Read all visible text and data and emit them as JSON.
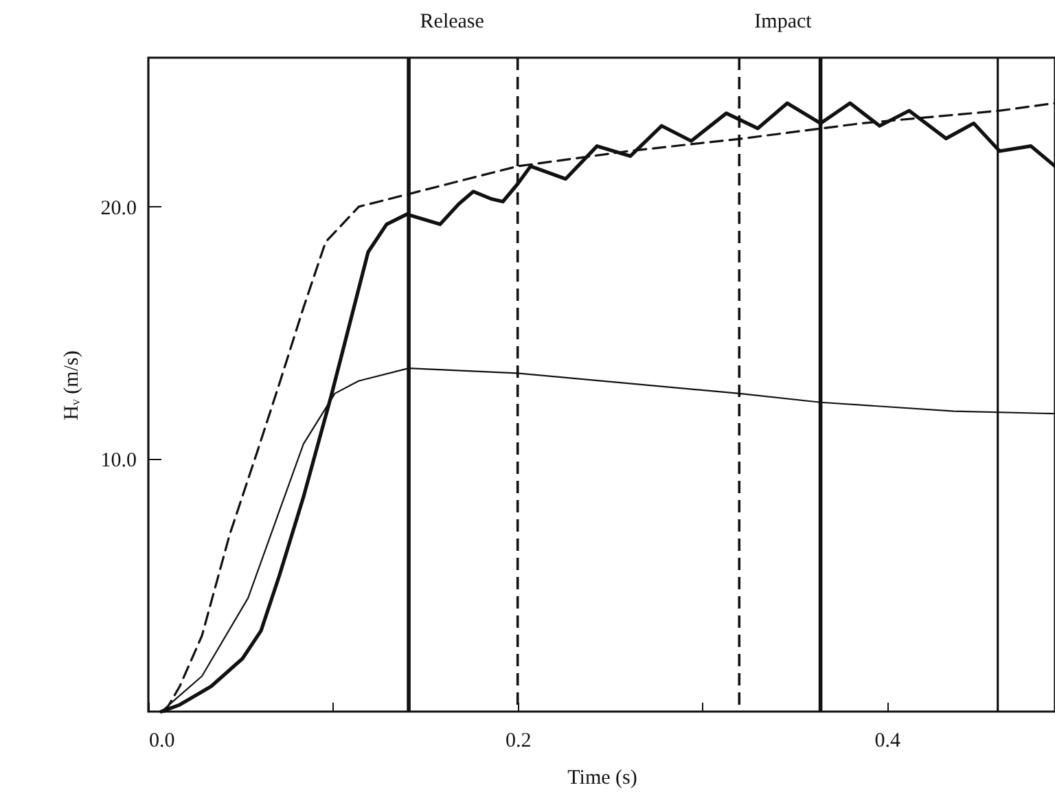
{
  "chart_data": {
    "type": "line",
    "xlabel": "Time (s)",
    "ylabel": "Hᵥ (m/s)",
    "annotations": [
      "Release",
      "Impact"
    ],
    "xlim": [
      0,
      0.491
    ],
    "ylim": [
      0,
      25.9
    ],
    "xticks": [
      {
        "value": 0,
        "label": "0.0"
      },
      {
        "value": 0.1,
        "label": null
      },
      {
        "value": 0.2,
        "label": "0.2"
      },
      {
        "value": 0.3,
        "label": null
      },
      {
        "value": 0.4,
        "label": "0.4"
      }
    ],
    "yticks": [
      {
        "value": 10,
        "label": "10.0"
      },
      {
        "value": 20,
        "label": "20.0"
      }
    ],
    "grid": false,
    "marker": "none",
    "series": [
      {
        "color": "#111111",
        "line_style": "solid",
        "x": [
          0.007,
          0.017,
          0.034,
          0.051,
          0.061,
          0.071,
          0.084,
          0.099,
          0.119,
          0.129,
          0.14,
          0.149,
          0.158,
          0.168,
          0.176,
          0.186,
          0.192,
          0.2,
          0.207,
          0.226,
          0.243,
          0.261,
          0.278,
          0.294,
          0.313,
          0.33,
          0.346,
          0.364,
          0.38,
          0.396,
          0.412,
          0.432,
          0.447,
          0.461,
          0.478,
          0.491
        ],
        "values": [
          0,
          0.27,
          1.0,
          2.1,
          3.2,
          5.4,
          8.5,
          12.5,
          18.2,
          19.3,
          19.7,
          19.5,
          19.3,
          20.1,
          20.6,
          20.3,
          20.2,
          20.9,
          21.6,
          21.1,
          22.4,
          22.0,
          23.2,
          22.6,
          23.7,
          23.1,
          24.1,
          23.3,
          24.1,
          23.2,
          23.8,
          22.7,
          23.3,
          22.2,
          22.4,
          21.6
        ]
      },
      {
        "color": "#111111",
        "line_style": "dashed",
        "x": [
          0.009,
          0.017,
          0.029,
          0.044,
          0.059,
          0.071,
          0.084,
          0.096,
          0.114,
          0.141,
          0.173,
          0.2,
          0.26,
          0.322,
          0.386,
          0.461,
          0.491
        ],
        "values": [
          0,
          1.0,
          3.0,
          7.0,
          10.3,
          13.0,
          16.0,
          18.6,
          20.0,
          20.5,
          21.1,
          21.6,
          22.2,
          22.7,
          23.3,
          23.8,
          24.1
        ]
      },
      {
        "color": "#111111",
        "line_style": "solid",
        "x": [
          0.007,
          0.029,
          0.054,
          0.084,
          0.101,
          0.114,
          0.141,
          0.2,
          0.32,
          0.364,
          0.436,
          0.491
        ],
        "values": [
          0,
          1.4,
          4.5,
          10.6,
          12.6,
          13.1,
          13.6,
          13.4,
          12.6,
          12.25,
          11.9,
          11.8
        ]
      }
    ],
    "ref_lines": [
      {
        "axis": "x",
        "value": 0.141,
        "color": "#111111",
        "line_style": "solid"
      },
      {
        "axis": "x",
        "value": 0.2,
        "color": "#111111",
        "line_style": "dashed"
      },
      {
        "axis": "x",
        "value": 0.32,
        "color": "#111111",
        "line_style": "dashed"
      },
      {
        "axis": "x",
        "value": 0.364,
        "color": "#111111",
        "line_style": "solid"
      },
      {
        "axis": "x",
        "value": 0.46,
        "color": "#111111",
        "line_style": "solid"
      }
    ]
  }
}
